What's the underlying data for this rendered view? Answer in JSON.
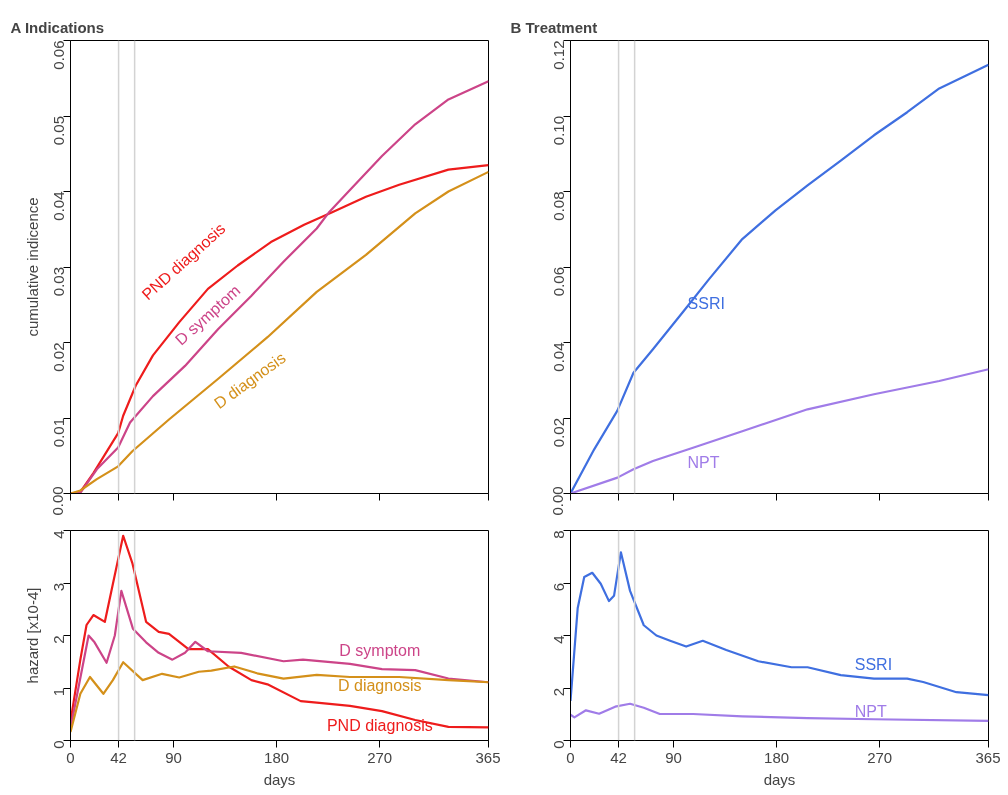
{
  "chart_data": [
    {
      "type": "line",
      "title": "A Indications",
      "ylabel": "cumulative indicence",
      "xlim": [
        0,
        365
      ],
      "ylim": [
        0,
        0.06
      ],
      "xticks": [
        0,
        42,
        90,
        180,
        270,
        365
      ],
      "yticks": [
        {
          "value": 0,
          "label": "0.00"
        },
        {
          "value": 0.01,
          "label": "0.01"
        },
        {
          "value": 0.02,
          "label": "0.02"
        },
        {
          "value": 0.03,
          "label": "0.03"
        },
        {
          "value": 0.04,
          "label": "0.04"
        },
        {
          "value": 0.05,
          "label": "0.05"
        },
        {
          "value": 0.06,
          "label": "0.06"
        }
      ],
      "tick_labels": "y",
      "grid": false,
      "ref_lines": [
        {
          "axis": "x",
          "value": 42,
          "label": null,
          "color": "#d3d3d3"
        },
        {
          "axis": "x",
          "value": 56,
          "label": null,
          "color": "#d3d3d3"
        }
      ],
      "series": [
        {
          "name": "PND diagnosis",
          "color": "#ee1c1c",
          "x": [
            0,
            8.6,
            20,
            41.6,
            46,
            57,
            72,
            95,
            120,
            146,
            175,
            204,
            229,
            258,
            287,
            330,
            365
          ],
          "values": [
            0,
            0.0002,
            0.0027,
            0.008,
            0.0103,
            0.0143,
            0.0183,
            0.0227,
            0.0271,
            0.0302,
            0.0333,
            0.0356,
            0.0373,
            0.0393,
            0.0409,
            0.0429,
            0.0435
          ]
        },
        {
          "name": "D symptom",
          "color": "#cc4488",
          "x": [
            0,
            8.6,
            23,
            41.6,
            52,
            72,
            100,
            129,
            158,
            186,
            215,
            226,
            244,
            272,
            301,
            330,
            365
          ],
          "values": [
            0,
            0.0001,
            0.0032,
            0.0061,
            0.0094,
            0.0129,
            0.0169,
            0.0218,
            0.0262,
            0.0307,
            0.0351,
            0.0373,
            0.0402,
            0.0447,
            0.0489,
            0.0522,
            0.0546
          ]
        },
        {
          "name": "D diagnosis",
          "color": "#d4901a",
          "x": [
            0,
            8.6,
            23,
            41.6,
            54,
            86,
            129,
            172,
            215,
            258,
            301,
            330,
            365
          ],
          "values": [
            0,
            0.0004,
            0.0019,
            0.0036,
            0.0056,
            0.0098,
            0.0152,
            0.0207,
            0.0267,
            0.0316,
            0.0371,
            0.04,
            0.0426
          ]
        }
      ]
    },
    {
      "type": "line",
      "title": "B Treatment",
      "xlim": [
        0,
        365
      ],
      "ylim": [
        0,
        0.12
      ],
      "xticks": [
        0,
        42,
        90,
        180,
        270,
        365
      ],
      "yticks": [
        {
          "value": 0,
          "label": "0.00"
        },
        {
          "value": 0.02,
          "label": "0.02"
        },
        {
          "value": 0.04,
          "label": "0.04"
        },
        {
          "value": 0.06,
          "label": "0.06"
        },
        {
          "value": 0.08,
          "label": "0.08"
        },
        {
          "value": 0.1,
          "label": "0.10"
        },
        {
          "value": 0.12,
          "label": "0.12"
        }
      ],
      "tick_labels": "y",
      "grid": false,
      "ref_lines": [
        {
          "axis": "x",
          "value": 42,
          "label": null,
          "color": "#d3d3d3"
        },
        {
          "axis": "x",
          "value": 56,
          "label": null,
          "color": "#d3d3d3"
        }
      ],
      "series": [
        {
          "name": "SSRI",
          "color": "#3f6fe0",
          "x": [
            0,
            20.7,
            40.8,
            55,
            72,
            98,
            121,
            150,
            179,
            207,
            236,
            265,
            294,
            322,
            365
          ],
          "values": [
            0,
            0.0117,
            0.0219,
            0.032,
            0.0382,
            0.048,
            0.0568,
            0.0674,
            0.075,
            0.0816,
            0.0882,
            0.0949,
            0.101,
            0.1073,
            0.1136
          ]
        },
        {
          "name": "NPT",
          "color": "#a07ce8",
          "x": [
            0,
            41,
            55,
            72,
            107,
            150,
            207,
            265,
            322,
            365
          ],
          "values": [
            0,
            0.0042,
            0.0064,
            0.0086,
            0.0121,
            0.0165,
            0.0223,
            0.0263,
            0.0298,
            0.0329
          ]
        }
      ]
    },
    {
      "type": "line",
      "xlabel": "days",
      "ylabel": "hazard [x10-4]",
      "xlim": [
        0,
        365
      ],
      "ylim": [
        0,
        4
      ],
      "xticks": [
        0,
        42,
        90,
        180,
        270,
        365
      ],
      "yticks": [
        0,
        1,
        2,
        3,
        4
      ],
      "grid": false,
      "ref_lines": [
        {
          "axis": "x",
          "value": 42,
          "label": null,
          "color": "#d3d3d3"
        },
        {
          "axis": "x",
          "value": 56,
          "label": null,
          "color": "#d3d3d3"
        }
      ],
      "series": [
        {
          "name": "PND diagnosis",
          "color": "#ee1c1c",
          "x": [
            0,
            8.6,
            14,
            20,
            30,
            37,
            46,
            54,
            66,
            77,
            86,
            103,
            120,
            138,
            158,
            172,
            201,
            215,
            244,
            272,
            301,
            330,
            365
          ],
          "values": [
            0.36,
            1.54,
            2.2,
            2.39,
            2.26,
            2.98,
            3.9,
            3.38,
            2.26,
            2.07,
            2.03,
            1.74,
            1.74,
            1.41,
            1.15,
            1.07,
            0.75,
            0.72,
            0.66,
            0.56,
            0.39,
            0.26,
            0.25
          ]
        },
        {
          "name": "D symptom",
          "color": "#cc4488",
          "x": [
            0,
            15.8,
            21,
            31.5,
            38.7,
            44.4,
            54.5,
            66,
            77,
            89,
            100,
            109,
            120,
            149,
            186,
            203,
            244,
            272,
            301,
            330,
            365
          ],
          "values": [
            0.23,
            2.0,
            1.87,
            1.48,
            2.0,
            2.85,
            2.13,
            1.87,
            1.67,
            1.54,
            1.67,
            1.88,
            1.7,
            1.67,
            1.51,
            1.54,
            1.46,
            1.36,
            1.34,
            1.18,
            1.11
          ]
        },
        {
          "name": "D diagnosis",
          "color": "#d4901a",
          "x": [
            0,
            8.6,
            17,
            28.7,
            37,
            46,
            63,
            80,
            95,
            112,
            123,
            143,
            163,
            186,
            215,
            244,
            287,
            330,
            365
          ],
          "values": [
            0.16,
            0.89,
            1.21,
            0.89,
            1.15,
            1.49,
            1.15,
            1.27,
            1.2,
            1.31,
            1.33,
            1.41,
            1.28,
            1.18,
            1.25,
            1.21,
            1.21,
            1.15,
            1.11
          ]
        }
      ]
    },
    {
      "type": "line",
      "xlabel": "days",
      "xlim": [
        0,
        365
      ],
      "ylim": [
        0,
        8
      ],
      "xticks": [
        0,
        42,
        90,
        180,
        270,
        365
      ],
      "yticks": [
        0,
        2,
        4,
        6,
        8
      ],
      "grid": false,
      "ref_lines": [
        {
          "axis": "x",
          "value": 42,
          "label": null,
          "color": "#d3d3d3"
        },
        {
          "axis": "x",
          "value": 56,
          "label": null,
          "color": "#d3d3d3"
        }
      ],
      "series": [
        {
          "name": "SSRI",
          "color": "#3f6fe0",
          "x": [
            0,
            6.3,
            12,
            19,
            26.4,
            33.6,
            38,
            44,
            52,
            64,
            75,
            87,
            101,
            115.5,
            136,
            164,
            193,
            207,
            236,
            265,
            294,
            308,
            337,
            365
          ],
          "values": [
            1.51,
            5.05,
            6.23,
            6.39,
            5.97,
            5.31,
            5.51,
            7.17,
            5.7,
            4.39,
            4.0,
            3.8,
            3.58,
            3.8,
            3.45,
            3.02,
            2.79,
            2.79,
            2.49,
            2.36,
            2.36,
            2.23,
            1.84,
            1.73
          ]
        },
        {
          "name": "NPT",
          "color": "#a07ce8",
          "x": [
            0,
            3.4,
            13.5,
            25,
            39,
            52,
            64,
            78,
            107,
            150,
            207,
            265,
            365
          ],
          "values": [
            0.98,
            0.88,
            1.15,
            1.02,
            1.29,
            1.4,
            1.25,
            1.01,
            1.01,
            0.92,
            0.85,
            0.81,
            0.75
          ]
        }
      ]
    }
  ]
}
